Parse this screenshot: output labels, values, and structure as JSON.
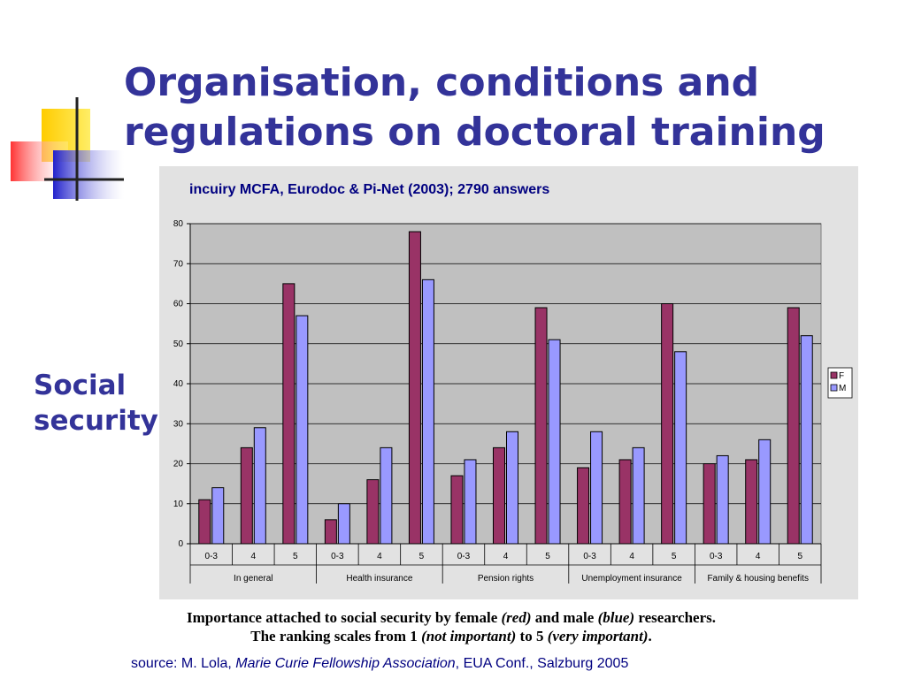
{
  "title_line1": "Organisation, conditions and",
  "title_line2": "regulations on doctoral training",
  "side_label_line1": "Social",
  "side_label_line2": "security",
  "inquiry": "incuiry MCFA, Eurodoc & Pi-Net (2003); 2790 answers",
  "caption": {
    "line1_parts": [
      "Importance attached to social security by female ",
      "(red)",
      " and male ",
      "(blue)",
      " researchers."
    ],
    "line2_parts": [
      "The ranking scales from 1 ",
      "(not important)",
      " to 5 ",
      "(very important)",
      "."
    ]
  },
  "source": {
    "prefix": "source: M. Lola, ",
    "italic": "Marie Curie Fellowship Association",
    "suffix": ", EUA Conf., Salzburg 2005"
  },
  "colors": {
    "title": "#333399",
    "female": "#993366",
    "male": "#9999ff",
    "panel": "#e2e2e2",
    "plot_bg": "#c0c0c0"
  },
  "chart_data": {
    "type": "bar",
    "groups": [
      "In general",
      "Health insurance",
      "Pension rights",
      "Unemployment insurance",
      "Family & housing benefits"
    ],
    "categories": [
      "0-3",
      "4",
      "5",
      "0-3",
      "4",
      "5",
      "0-3",
      "4",
      "5",
      "0-3",
      "4",
      "5",
      "0-3",
      "4",
      "5"
    ],
    "series": [
      {
        "name": "F",
        "color": "#993366",
        "values": [
          11,
          24,
          65,
          6,
          16,
          78,
          17,
          24,
          59,
          19,
          21,
          60,
          20,
          21,
          59
        ]
      },
      {
        "name": "M",
        "color": "#9999ff",
        "values": [
          14,
          29,
          57,
          10,
          24,
          66,
          21,
          28,
          51,
          28,
          24,
          48,
          22,
          26,
          52
        ]
      }
    ],
    "ylim": [
      0,
      80
    ],
    "yticks": [
      0,
      10,
      20,
      30,
      40,
      50,
      60,
      70,
      80
    ],
    "grid": true,
    "legend": "right"
  }
}
